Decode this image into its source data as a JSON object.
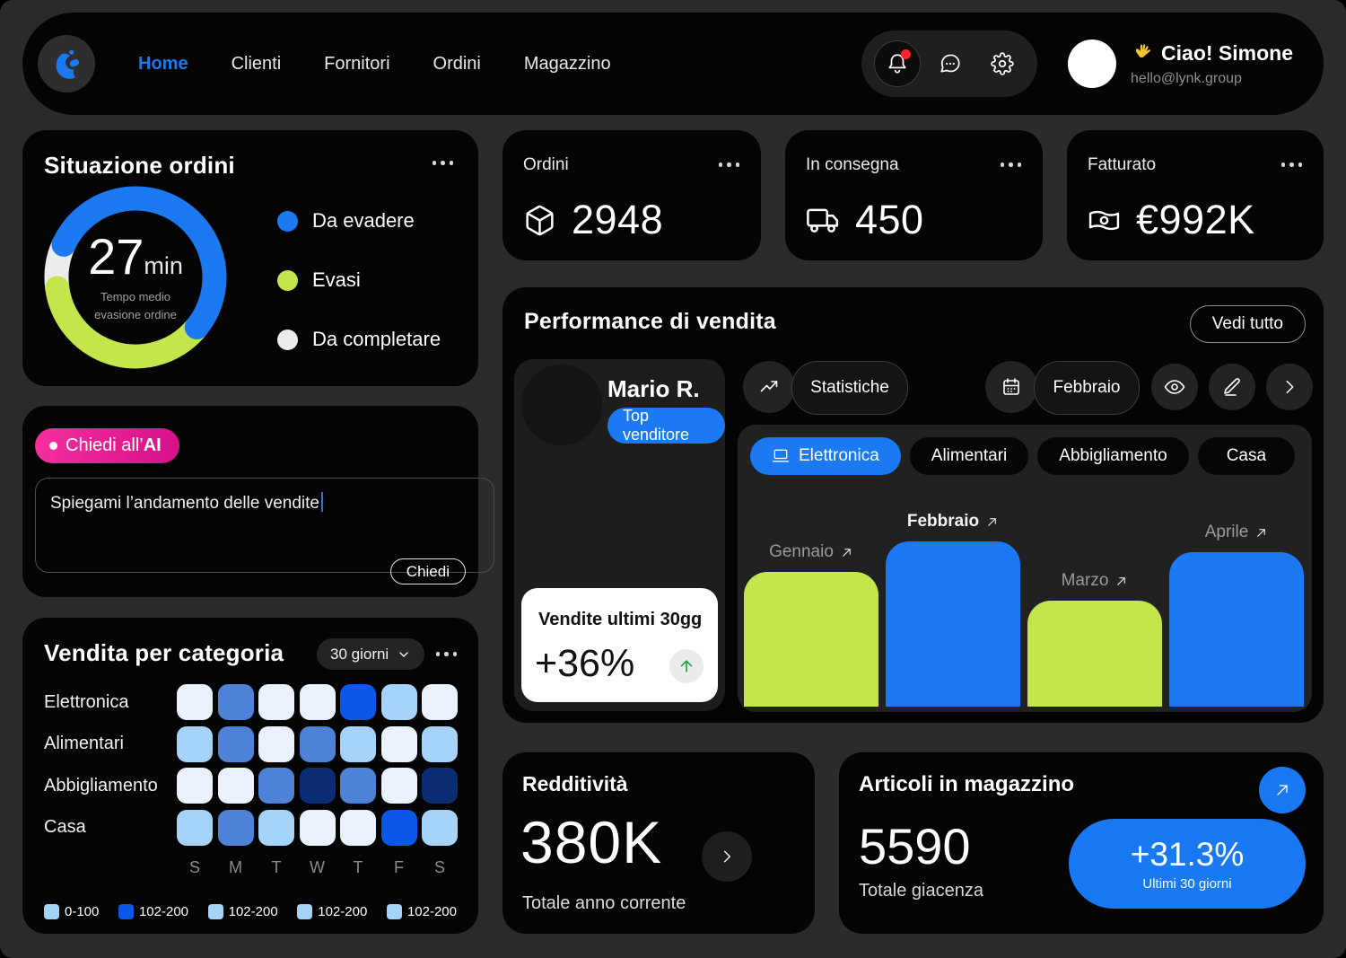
{
  "header": {
    "nav": [
      {
        "label": "Home",
        "active": true
      },
      {
        "label": "Clienti",
        "active": false
      },
      {
        "label": "Fornitori",
        "active": false
      },
      {
        "label": "Ordini",
        "active": false
      },
      {
        "label": "Magazzino",
        "active": false
      }
    ],
    "user": {
      "wave": "👋",
      "greeting": "Ciao! Simone",
      "email": "hello@lynk.group"
    }
  },
  "order_status": {
    "title": "Situazione ordini",
    "center_value": "27",
    "center_unit": "min",
    "center_caption": "Tempo medio evasione ordine",
    "segments": [
      {
        "label": "Da evadere",
        "color": "#1b7af1",
        "pct": 54
      },
      {
        "label": "Evasi",
        "color": "#c3e64c",
        "pct": 37
      },
      {
        "label": "Da completare",
        "color": "#ececec",
        "pct": 9
      }
    ]
  },
  "ask_ai": {
    "badge_prefix": "Chiedi all’",
    "badge_bold": "AI",
    "input_value": "Spiegami l’andamento delle vendite",
    "submit_label": "Chiedi"
  },
  "category_sales": {
    "title": "Vendita per categoria",
    "period": "30 giorni",
    "rows": [
      "Elettronica",
      "Alimentari",
      "Abbigliamento",
      "Casa"
    ],
    "days": [
      "S",
      "M",
      "T",
      "W",
      "T",
      "F",
      "S"
    ],
    "palette": [
      "#e9f1fc",
      "#a6d3f8",
      "#4e82d6",
      "#0b57e8",
      "#0b2d74"
    ],
    "matrix": [
      [
        0,
        2,
        0,
        0,
        3,
        1,
        0
      ],
      [
        1,
        2,
        0,
        2,
        1,
        0,
        1
      ],
      [
        0,
        0,
        2,
        4,
        2,
        0,
        4
      ],
      [
        1,
        2,
        1,
        0,
        0,
        3,
        1
      ]
    ],
    "legend": [
      {
        "color": "#a6d3f8",
        "label": "0-100"
      },
      {
        "color": "#0b57e8",
        "label": "102-200"
      },
      {
        "color": "#a6d3f8",
        "label": "102-200"
      },
      {
        "color": "#a6d3f8",
        "label": "102-200"
      },
      {
        "color": "#a6d3f8",
        "label": "102-200"
      }
    ]
  },
  "stats": [
    {
      "label": "Ordini",
      "value": "2948",
      "icon": "package-icon"
    },
    {
      "label": "In consegna",
      "value": "450",
      "icon": "truck-icon"
    },
    {
      "label": "Fatturato",
      "value": "€992K",
      "icon": "banknote-icon"
    }
  ],
  "performance": {
    "title": "Performance di vendita",
    "view_all": "Vedi tutto",
    "seller": {
      "name": "Mario R.",
      "badge": "Top venditore",
      "stat_title": "Vendite ultimi 30gg",
      "stat_value": "+36%"
    },
    "toolbar": {
      "statistics": "Statistiche",
      "month": "Febbraio"
    },
    "categories": [
      {
        "label": "Elettronica",
        "active": true
      },
      {
        "label": "Alimentari",
        "active": false
      },
      {
        "label": "Abbigliamento",
        "active": false
      },
      {
        "label": "Casa",
        "active": false
      }
    ],
    "chart_data": {
      "type": "bar",
      "categories": [
        "Gennaio",
        "Febbraio",
        "Marzo",
        "Aprile"
      ],
      "values": [
        75,
        92,
        59,
        86
      ],
      "unit": "percent-of-max-height",
      "colors": [
        "#c3e64c",
        "#1b7af1",
        "#c3e64c",
        "#1b7af1"
      ],
      "highlight": "Febbraio"
    }
  },
  "profitability": {
    "title": "Redditività",
    "value": "380K",
    "caption": "Totale anno corrente"
  },
  "inventory": {
    "title": "Articoli in magazzino",
    "value": "5590",
    "caption": "Totale giacenza",
    "delta": "+31.3%",
    "delta_caption": "Ultimi 30 giorni"
  }
}
